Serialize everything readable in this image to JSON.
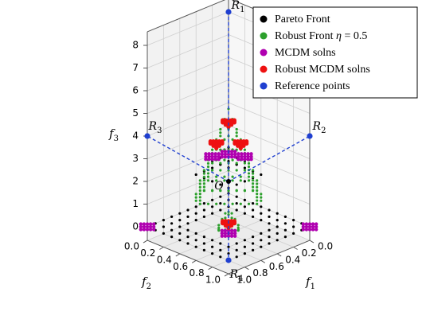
{
  "chart_data": {
    "type": "scatter",
    "projection": "3d",
    "axes": {
      "f1": {
        "label": "f",
        "sub": "1",
        "ticks": [
          "0.0",
          "0.2",
          "0.4",
          "0.6",
          "0.8",
          "1.0"
        ]
      },
      "f2": {
        "label": "f",
        "sub": "2",
        "ticks": [
          "0.0",
          "0.2",
          "0.4",
          "0.6",
          "0.8",
          "1.0"
        ]
      },
      "f3": {
        "label": "f",
        "sub": "3",
        "ticks": [
          "0",
          "1",
          "2",
          "3",
          "4",
          "5",
          "6",
          "7",
          "8"
        ]
      }
    },
    "legend": {
      "position": "top-right",
      "entries": [
        {
          "name": "Pareto Front",
          "color": "#000000"
        },
        {
          "name": "Robust Front",
          "eta_symbol": "η",
          "eta_value": " = 0.5",
          "color": "#2ca02c"
        },
        {
          "name": "MCDM solns",
          "color": "#b000b0"
        },
        {
          "name": "Robust MCDM solns",
          "color": "#ee1111"
        },
        {
          "name": "Reference points",
          "color": "#1f3fd0"
        }
      ]
    },
    "reference_points": [
      {
        "name": "R",
        "sub": "1",
        "f1": 0.0,
        "f2": 0.0,
        "f3": 8.0
      },
      {
        "name": "R",
        "sub": "2",
        "f1": 0.0,
        "f2": 1.0,
        "f3": 4.0
      },
      {
        "name": "R",
        "sub": "3",
        "f1": 1.0,
        "f2": 0.0,
        "f3": 4.0
      },
      {
        "name": "R",
        "sub": "4",
        "f1": 1.0,
        "f2": 1.0,
        "f3": 0.0
      }
    ],
    "origin_marker": {
      "label": "O",
      "f1": 0.5,
      "f2": 0.5,
      "f3": 2.0
    },
    "pareto_front": {
      "grid_step": 0.1,
      "range": [
        0,
        1
      ]
    },
    "robust_front": {
      "grid_step": 0.05,
      "range": [
        0.25,
        0.75
      ]
    },
    "mcdm_points": [
      {
        "f1": 0.5,
        "f2": 0.5,
        "f3": 3.2
      },
      {
        "f1": 0.3,
        "f2": 0.5,
        "f3": 2.8
      },
      {
        "f1": 0.5,
        "f2": 0.3,
        "f3": 2.8
      },
      {
        "f1": 0.7,
        "f2": 0.7,
        "f3": 0.3
      },
      {
        "f1": 0.0,
        "f2": 1.0,
        "f3": 0.0
      },
      {
        "f1": 1.0,
        "f2": 0.0,
        "f3": 0.0
      }
    ],
    "robust_mcdm_points": [
      {
        "f1": 0.5,
        "f2": 0.5,
        "f3": 4.7
      },
      {
        "f1": 0.3,
        "f2": 0.45,
        "f3": 3.4
      },
      {
        "f1": 0.45,
        "f2": 0.3,
        "f3": 3.4
      },
      {
        "f1": 0.72,
        "f2": 0.72,
        "f3": 0.9
      }
    ]
  }
}
